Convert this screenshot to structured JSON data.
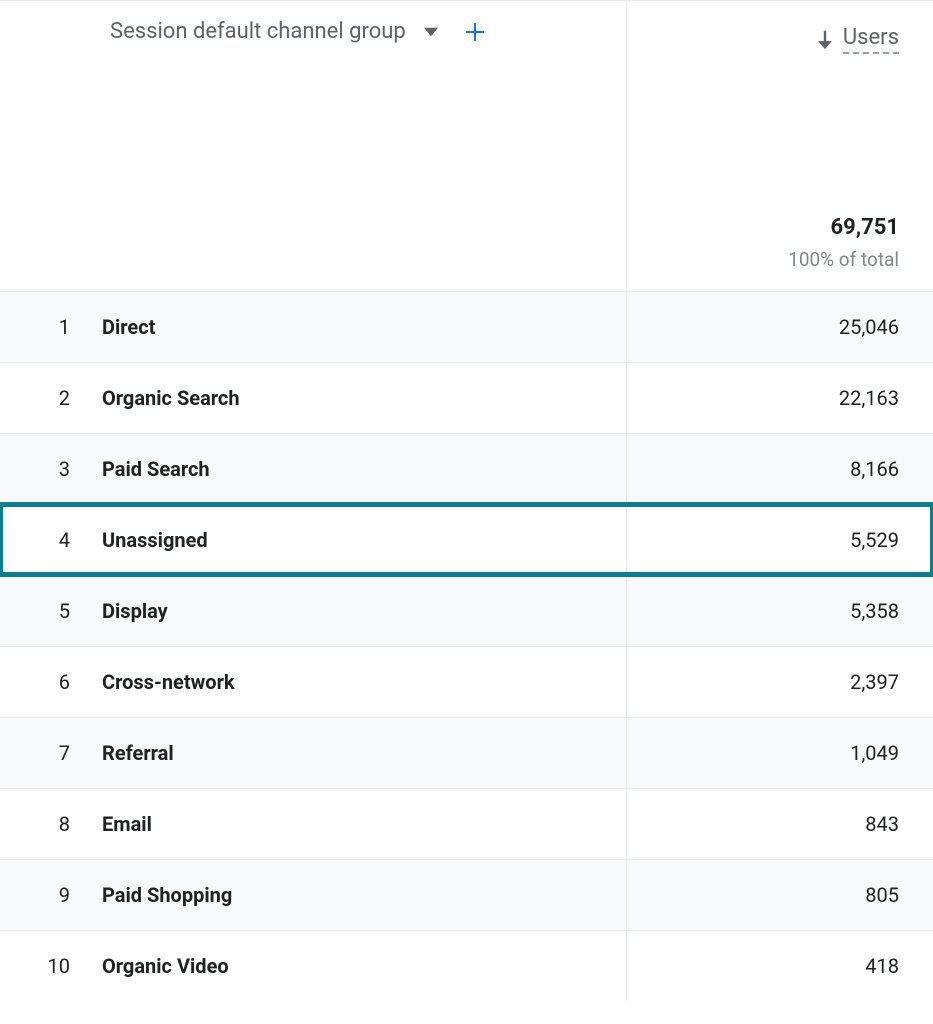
{
  "table": {
    "dimension_header": "Session default channel group",
    "metric_header": "Users",
    "total_value": "69,751",
    "total_subtext": "100% of total",
    "highlight_color": "#0d7f8c",
    "zebra_bg": "#f8f9fa",
    "rows": [
      {
        "index": "1",
        "label": "Direct",
        "value": "25,046",
        "zebra": true,
        "highlighted": false
      },
      {
        "index": "2",
        "label": "Organic Search",
        "value": "22,163",
        "zebra": false,
        "highlighted": false
      },
      {
        "index": "3",
        "label": "Paid Search",
        "value": "8,166",
        "zebra": true,
        "highlighted": false
      },
      {
        "index": "4",
        "label": "Unassigned",
        "value": "5,529",
        "zebra": false,
        "highlighted": true
      },
      {
        "index": "5",
        "label": "Display",
        "value": "5,358",
        "zebra": true,
        "highlighted": false
      },
      {
        "index": "6",
        "label": "Cross-network",
        "value": "2,397",
        "zebra": false,
        "highlighted": false
      },
      {
        "index": "7",
        "label": "Referral",
        "value": "1,049",
        "zebra": true,
        "highlighted": false
      },
      {
        "index": "8",
        "label": "Email",
        "value": "843",
        "zebra": false,
        "highlighted": false
      },
      {
        "index": "9",
        "label": "Paid Shopping",
        "value": "805",
        "zebra": true,
        "highlighted": false
      },
      {
        "index": "10",
        "label": "Organic Video",
        "value": "418",
        "zebra": false,
        "highlighted": false
      }
    ]
  },
  "colors": {
    "text_primary": "#202124",
    "text_secondary": "#5f6368",
    "text_muted": "#80868b",
    "border": "#e8eaed",
    "accent_blue": "#1a73e8"
  }
}
